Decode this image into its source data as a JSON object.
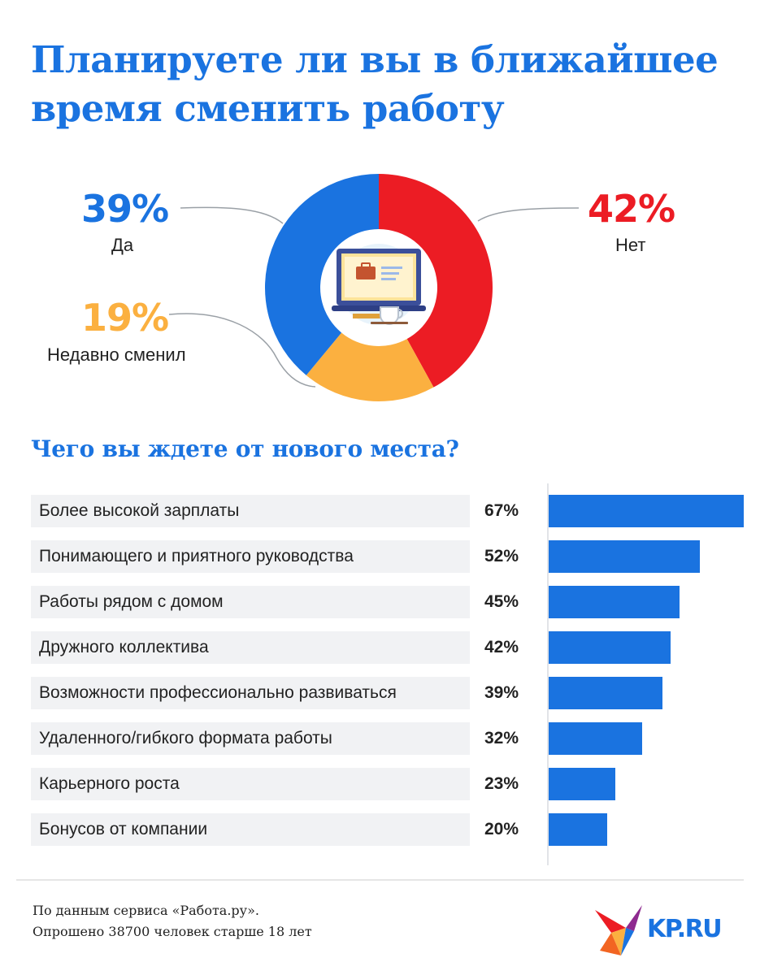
{
  "title": {
    "line1": "Планируете ли вы в ближайшее",
    "line2": "время сменить работу"
  },
  "chart_data": [
    {
      "type": "pie",
      "categories": [
        "Да",
        "Нет",
        "Недавно сменил"
      ],
      "values": [
        39,
        42,
        19
      ],
      "labels": [
        "39%",
        "42%",
        "19%"
      ],
      "colors": [
        "#1a73e0",
        "#ec1c24",
        "#fbb040"
      ],
      "center_icon": "laptop-briefcase-coffee-icon"
    },
    {
      "type": "bar",
      "orientation": "horizontal",
      "title": "Чего вы ждете от нового места?",
      "categories": [
        "Более высокой зарплаты",
        "Понимающего и приятного руководства",
        "Работы рядом с домом",
        "Дружного коллектива",
        "Возможности профессионально развиваться",
        "Удаленного/гибкого формата работы",
        "Карьерного роста",
        "Бонусов от компании"
      ],
      "values": [
        67,
        52,
        45,
        42,
        39,
        32,
        23,
        20
      ],
      "labels": [
        "67%",
        "52%",
        "45%",
        "42%",
        "39%",
        "32%",
        "23%",
        "20%"
      ],
      "color": "#1a73e0",
      "xlim": [
        0,
        67
      ]
    }
  ],
  "source": {
    "line1": "По данным сервиса «Работа.ру».",
    "line2": "Опрошено 38700 человек старше 18 лет"
  },
  "logo": {
    "text": "KP.RU",
    "icon": "kp-bird-logo-icon"
  }
}
